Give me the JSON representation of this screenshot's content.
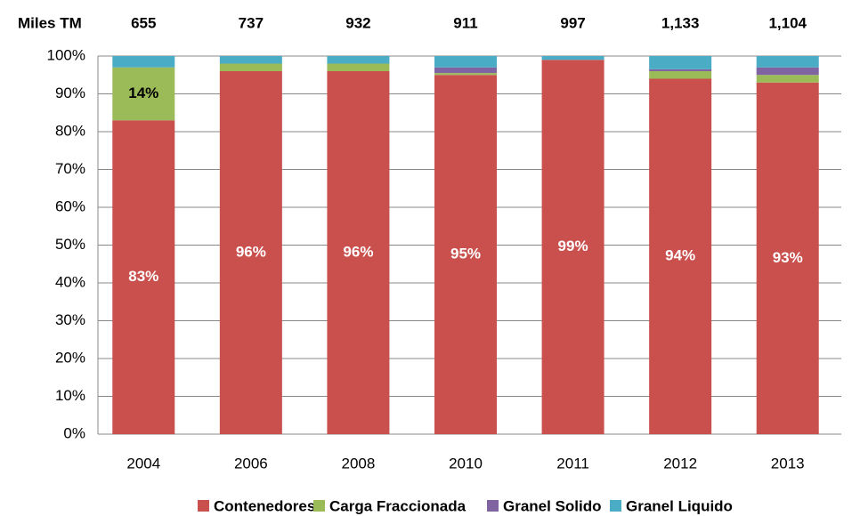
{
  "chart_data": {
    "type": "stacked_bar_100",
    "totals_title": "Miles TM",
    "totals": [
      655,
      737,
      932,
      911,
      997,
      1133,
      1104
    ],
    "totals_labels": [
      "655",
      "737",
      "932",
      "911",
      "997",
      "1,133",
      "1,104"
    ],
    "categories": [
      "2004",
      "2006",
      "2008",
      "2010",
      "2011",
      "2012",
      "2013"
    ],
    "series": [
      {
        "name": "Contenedores",
        "color": "#c9504d",
        "values": [
          83,
          96,
          96,
          95,
          99,
          94,
          93
        ],
        "value_labels": [
          "83%",
          "96%",
          "96%",
          "95%",
          "99%",
          "94%",
          "93%"
        ]
      },
      {
        "name": "Carga Fraccionada",
        "color": "#9bbb59",
        "values": [
          14,
          2,
          2,
          0.5,
          0,
          2,
          2
        ],
        "value_labels": [
          "14%",
          null,
          null,
          null,
          null,
          null,
          null
        ]
      },
      {
        "name": "Granel Solido",
        "color": "#8064a2",
        "values": [
          0,
          0,
          0,
          1.5,
          0,
          0.5,
          2
        ]
      },
      {
        "name": "Granel Liquido",
        "color": "#4bacc6",
        "values": [
          3,
          2,
          2,
          3,
          1,
          3.5,
          3
        ]
      }
    ],
    "ylim": [
      0,
      100
    ],
    "yticks": [
      {
        "value": 0,
        "label": "0%"
      },
      {
        "value": 10,
        "label": "10%"
      },
      {
        "value": 20,
        "label": "20%"
      },
      {
        "value": 30,
        "label": "30%"
      },
      {
        "value": 40,
        "label": "40%"
      },
      {
        "value": 50,
        "label": "50%"
      },
      {
        "value": 60,
        "label": "60%"
      },
      {
        "value": 70,
        "label": "70%"
      },
      {
        "value": 80,
        "label": "80%"
      },
      {
        "value": 90,
        "label": "90%"
      },
      {
        "value": 100,
        "label": "100%"
      }
    ],
    "grid": true,
    "legend": "bottom"
  }
}
